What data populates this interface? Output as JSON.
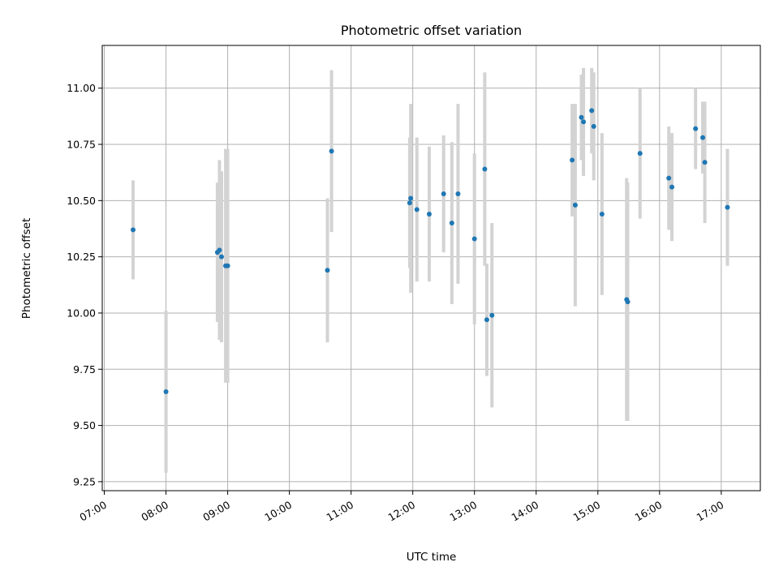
{
  "chart_data": {
    "type": "scatter",
    "title": "Photometric offset variation",
    "xlabel": "UTC time",
    "ylabel": "Photometric offset",
    "xlim": [
      "06:58",
      "17:38"
    ],
    "ylim": [
      9.21,
      11.19
    ],
    "grid": true,
    "x_ticks": [
      "07:00",
      "08:00",
      "09:00",
      "10:00",
      "11:00",
      "12:00",
      "13:00",
      "14:00",
      "15:00",
      "16:00",
      "17:00"
    ],
    "y_ticks": [
      "9.25",
      "9.50",
      "9.75",
      "10.00",
      "10.25",
      "10.50",
      "10.75",
      "11.00"
    ],
    "colors": {
      "marker": "#1f77b4",
      "errorbar": "#d3d3d3",
      "grid": "#b0b0b0"
    },
    "points": [
      {
        "time": "07:28",
        "value": 10.37,
        "error": 0.22
      },
      {
        "time": "08:00",
        "value": 9.65,
        "error": 0.36
      },
      {
        "time": "08:50",
        "value": 10.27,
        "error": 0.31
      },
      {
        "time": "08:52",
        "value": 10.28,
        "error": 0.4
      },
      {
        "time": "08:54",
        "value": 10.25,
        "error": 0.38
      },
      {
        "time": "08:58",
        "value": 10.21,
        "error": 0.52
      },
      {
        "time": "09:00",
        "value": 10.21,
        "error": 0.52
      },
      {
        "time": "10:37",
        "value": 10.19,
        "error": 0.32
      },
      {
        "time": "10:41",
        "value": 10.72,
        "error": 0.36
      },
      {
        "time": "11:57",
        "value": 10.49,
        "error": 0.29
      },
      {
        "time": "11:58",
        "value": 10.51,
        "error": 0.42
      },
      {
        "time": "12:04",
        "value": 10.46,
        "error": 0.32
      },
      {
        "time": "12:16",
        "value": 10.44,
        "error": 0.3
      },
      {
        "time": "12:30",
        "value": 10.53,
        "error": 0.26
      },
      {
        "time": "12:38",
        "value": 10.4,
        "error": 0.36
      },
      {
        "time": "12:44",
        "value": 10.53,
        "error": 0.4
      },
      {
        "time": "13:00",
        "value": 10.33,
        "error": 0.38
      },
      {
        "time": "13:10",
        "value": 10.64,
        "error": 0.43
      },
      {
        "time": "13:12",
        "value": 9.97,
        "error": 0.25
      },
      {
        "time": "13:17",
        "value": 9.99,
        "error": 0.41
      },
      {
        "time": "14:35",
        "value": 10.68,
        "error": 0.25
      },
      {
        "time": "14:38",
        "value": 10.48,
        "error": 0.45
      },
      {
        "time": "14:44",
        "value": 10.87,
        "error": 0.19
      },
      {
        "time": "14:46",
        "value": 10.85,
        "error": 0.24
      },
      {
        "time": "14:54",
        "value": 10.9,
        "error": 0.19
      },
      {
        "time": "14:56",
        "value": 10.83,
        "error": 0.24
      },
      {
        "time": "15:04",
        "value": 10.44,
        "error": 0.36
      },
      {
        "time": "15:28",
        "value": 10.06,
        "error": 0.54
      },
      {
        "time": "15:29",
        "value": 10.05,
        "error": 0.53
      },
      {
        "time": "15:41",
        "value": 10.71,
        "error": 0.29
      },
      {
        "time": "16:09",
        "value": 10.6,
        "error": 0.23
      },
      {
        "time": "16:12",
        "value": 10.56,
        "error": 0.24
      },
      {
        "time": "16:35",
        "value": 10.82,
        "error": 0.18
      },
      {
        "time": "16:42",
        "value": 10.78,
        "error": 0.16
      },
      {
        "time": "16:44",
        "value": 10.67,
        "error": 0.27
      },
      {
        "time": "17:06",
        "value": 10.47,
        "error": 0.26
      }
    ]
  }
}
